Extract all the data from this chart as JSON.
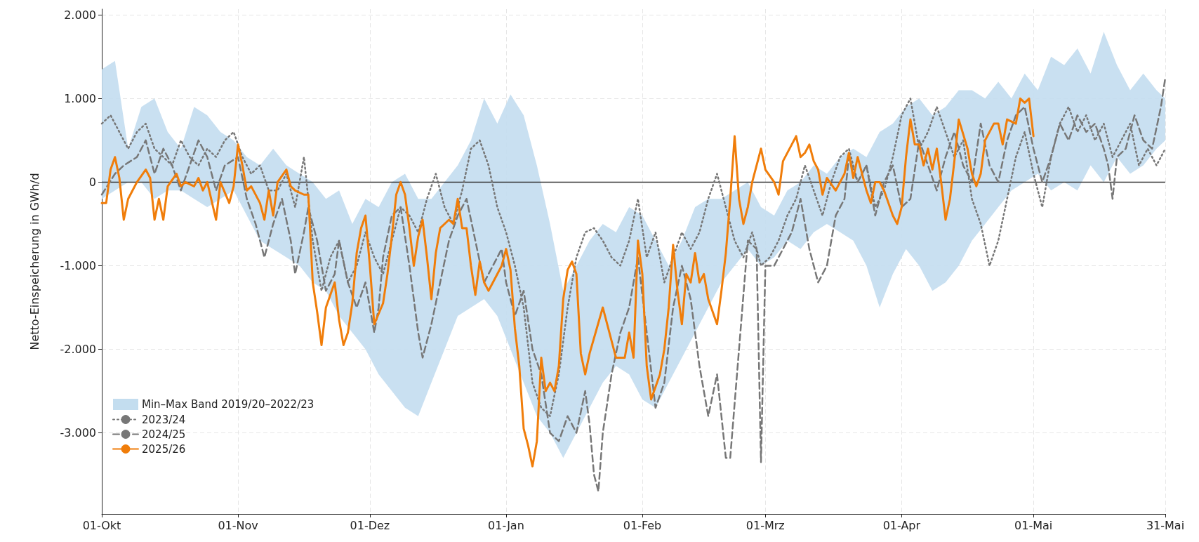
{
  "chart_data": {
    "type": "line",
    "ylabel": "Netto-Einspeicherung in GWh/d",
    "xlim": [
      "2025-10-01",
      "2026-05-31"
    ],
    "xticks": [
      {
        "value": "2025-10-01",
        "label": "01-Okt"
      },
      {
        "value": "2025-11-01",
        "label": "01-Nov"
      },
      {
        "value": "2025-12-01",
        "label": "01-Dez"
      },
      {
        "value": "2026-01-01",
        "label": "01-Jan"
      },
      {
        "value": "2026-02-01",
        "label": "01-Feb"
      },
      {
        "value": "2026-03-01",
        "label": "01-Mrz"
      },
      {
        "value": "2026-04-01",
        "label": "01-Apr"
      },
      {
        "value": "2026-05-01",
        "label": "01-Mai"
      },
      {
        "value": "2026-05-31",
        "label": "31-Mai"
      }
    ],
    "ylim": [
      -3970,
      2070
    ],
    "yticks": [
      {
        "value": -3000,
        "label": "-3.000"
      },
      {
        "value": -2000,
        "label": "-2.000"
      },
      {
        "value": -1000,
        "label": "-1.000"
      },
      {
        "value": 0,
        "label": "0"
      },
      {
        "value": 1000,
        "label": "1.000"
      },
      {
        "value": 2000,
        "label": "2.000"
      }
    ],
    "grid": true,
    "legend": "bottom left",
    "marker": "none",
    "ref_lines": [
      {
        "axis": "y",
        "value": 0,
        "color": "#333333"
      }
    ],
    "series": [
      {
        "name": "Min–Max Band 2019/20–2022/23",
        "type": "area",
        "color": "#c3ddef",
        "x": [
          "2025-10-01",
          "2025-10-04",
          "2025-10-07",
          "2025-10-10",
          "2025-10-13",
          "2025-10-16",
          "2025-10-19",
          "2025-10-22",
          "2025-10-25",
          "2025-10-28",
          "2025-10-31",
          "2025-11-03",
          "2025-11-06",
          "2025-11-09",
          "2025-11-12",
          "2025-11-15",
          "2025-11-18",
          "2025-11-21",
          "2025-11-24",
          "2025-11-27",
          "2025-11-30",
          "2025-12-03",
          "2025-12-06",
          "2025-12-09",
          "2025-12-12",
          "2025-12-15",
          "2025-12-18",
          "2025-12-21",
          "2025-12-24",
          "2025-12-27",
          "2025-12-30",
          "2026-01-02",
          "2026-01-05",
          "2026-01-08",
          "2026-01-11",
          "2026-01-14",
          "2026-01-17",
          "2026-01-20",
          "2026-01-23",
          "2026-01-26",
          "2026-01-29",
          "2026-02-01",
          "2026-02-04",
          "2026-02-07",
          "2026-02-10",
          "2026-02-13",
          "2026-02-16",
          "2026-02-19",
          "2026-02-22",
          "2026-02-25",
          "2026-02-28",
          "2026-03-03",
          "2026-03-06",
          "2026-03-09",
          "2026-03-12",
          "2026-03-15",
          "2026-03-18",
          "2026-03-21",
          "2026-03-24",
          "2026-03-27",
          "2026-03-30",
          "2026-04-02",
          "2026-04-05",
          "2026-04-08",
          "2026-04-11",
          "2026-04-14",
          "2026-04-17",
          "2026-04-20",
          "2026-04-23",
          "2026-04-26",
          "2026-04-29",
          "2026-05-02",
          "2026-05-05",
          "2026-05-08",
          "2026-05-11",
          "2026-05-14",
          "2026-05-17",
          "2026-05-20",
          "2026-05-23",
          "2026-05-26",
          "2026-05-29",
          "2026-05-31"
        ],
        "values": [
          null,
          null,
          null,
          null,
          null,
          null,
          null,
          null,
          null,
          null,
          null,
          null,
          null,
          null,
          null,
          null,
          null,
          null,
          null,
          null,
          null,
          null,
          null,
          null,
          null,
          null,
          null,
          null,
          null,
          null,
          null,
          null,
          null,
          null,
          null,
          null,
          null,
          null,
          null,
          null,
          null,
          null,
          null,
          null,
          null,
          null,
          null,
          null,
          null,
          null,
          null,
          null,
          null,
          null,
          null,
          null,
          null,
          null,
          null,
          null,
          null,
          null,
          null,
          null,
          null,
          null,
          null,
          null,
          null,
          null,
          null,
          null,
          null,
          null,
          null,
          null,
          null,
          null,
          null,
          null,
          null,
          null
        ],
        "lower": [
          -200,
          -100,
          0,
          0,
          -200,
          -100,
          -100,
          -200,
          -300,
          -200,
          -100,
          -400,
          -700,
          -800,
          -900,
          -1000,
          -1200,
          -1300,
          -1600,
          -1800,
          -2000,
          -2300,
          -2500,
          -2700,
          -2800,
          -2400,
          -2000,
          -1600,
          -1500,
          -1400,
          -1600,
          -2000,
          -2400,
          -2800,
          -3000,
          -3300,
          -3000,
          -2700,
          -2400,
          -2200,
          -2300,
          -2600,
          -2700,
          -2400,
          -2100,
          -1800,
          -1500,
          -1200,
          -1000,
          -800,
          -1000,
          -900,
          -700,
          -800,
          -600,
          -500,
          -600,
          -700,
          -1000,
          -1500,
          -1100,
          -800,
          -1000,
          -1300,
          -1200,
          -1000,
          -700,
          -500,
          -300,
          -100,
          0,
          100,
          -100,
          0,
          -100,
          200,
          0,
          300,
          100,
          200,
          400,
          500
        ],
        "upper": [
          1350,
          1450,
          400,
          900,
          1000,
          600,
          400,
          900,
          800,
          600,
          500,
          300,
          200,
          400,
          200,
          100,
          0,
          -200,
          -100,
          -500,
          -200,
          -300,
          0,
          100,
          -200,
          -200,
          0,
          200,
          500,
          1000,
          700,
          1050,
          800,
          200,
          -500,
          -1300,
          -1000,
          -700,
          -500,
          -600,
          -300,
          -400,
          -700,
          -1000,
          -700,
          -300,
          -200,
          -200,
          -100,
          0,
          -300,
          -400,
          -100,
          0,
          200,
          100,
          300,
          400,
          300,
          600,
          700,
          900,
          1000,
          800,
          900,
          1100,
          1100,
          1000,
          1200,
          1000,
          1300,
          1100,
          1500,
          1400,
          1600,
          1300,
          1800,
          1400,
          1100,
          1300,
          1100,
          1000
        ]
      },
      {
        "name": "2023/24",
        "line_style": "dotted",
        "color": "#777777",
        "x": [
          "2025-10-01",
          "2025-10-03",
          "2025-10-05",
          "2025-10-07",
          "2025-10-09",
          "2025-10-11",
          "2025-10-13",
          "2025-10-15",
          "2025-10-17",
          "2025-10-19",
          "2025-10-21",
          "2025-10-23",
          "2025-10-25",
          "2025-10-27",
          "2025-10-29",
          "2025-10-31",
          "2025-11-02",
          "2025-11-04",
          "2025-11-06",
          "2025-11-08",
          "2025-11-10",
          "2025-11-12",
          "2025-11-14",
          "2025-11-16",
          "2025-11-18",
          "2025-11-20",
          "2025-11-22",
          "2025-11-24",
          "2025-11-26",
          "2025-11-28",
          "2025-11-30",
          "2025-12-02",
          "2025-12-04",
          "2025-12-06",
          "2025-12-08",
          "2025-12-10",
          "2025-12-12",
          "2025-12-14",
          "2025-12-16",
          "2025-12-18",
          "2025-12-20",
          "2025-12-22",
          "2025-12-24",
          "2025-12-26",
          "2025-12-28",
          "2025-12-30",
          "2026-01-01",
          "2026-01-03",
          "2026-01-05",
          "2026-01-07",
          "2026-01-09",
          "2026-01-11",
          "2026-01-13",
          "2026-01-15",
          "2026-01-17",
          "2026-01-19",
          "2026-01-21",
          "2026-01-23",
          "2026-01-25",
          "2026-01-27",
          "2026-01-29",
          "2026-01-31",
          "2026-02-02",
          "2026-02-04",
          "2026-02-06",
          "2026-02-08",
          "2026-02-10",
          "2026-02-12",
          "2026-02-14",
          "2026-02-16",
          "2026-02-18",
          "2026-02-20",
          "2026-02-22",
          "2026-02-24",
          "2026-02-26",
          "2026-02-28",
          "2026-03-02",
          "2026-03-04",
          "2026-03-06",
          "2026-03-08",
          "2026-03-10",
          "2026-03-12",
          "2026-03-14",
          "2026-03-16",
          "2026-03-18",
          "2026-03-20",
          "2026-03-22",
          "2026-03-24",
          "2026-03-26",
          "2026-03-28",
          "2026-03-30",
          "2026-04-01",
          "2026-04-03",
          "2026-04-05",
          "2026-04-07",
          "2026-04-09",
          "2026-04-11",
          "2026-04-13",
          "2026-04-15",
          "2026-04-17",
          "2026-04-19",
          "2026-04-21",
          "2026-04-23",
          "2026-04-25",
          "2026-04-27",
          "2026-04-29",
          "2026-05-01",
          "2026-05-03",
          "2026-05-05",
          "2026-05-07",
          "2026-05-09",
          "2026-05-11",
          "2026-05-13",
          "2026-05-15",
          "2026-05-17",
          "2026-05-19",
          "2026-05-21",
          "2026-05-23",
          "2026-05-25",
          "2026-05-27",
          "2026-05-29",
          "2026-05-31"
        ],
        "values": [
          700,
          800,
          600,
          400,
          600,
          700,
          400,
          300,
          200,
          500,
          300,
          200,
          400,
          300,
          500,
          600,
          300,
          100,
          200,
          -100,
          -100,
          100,
          -300,
          300,
          -700,
          -1300,
          -900,
          -700,
          -1200,
          -1000,
          -600,
          -900,
          -1100,
          -700,
          -300,
          -400,
          -600,
          -200,
          100,
          -300,
          -500,
          -100,
          400,
          500,
          200,
          -300,
          -600,
          -1000,
          -1500,
          -2400,
          -2700,
          -2800,
          -2300,
          -1500,
          -900,
          -600,
          -550,
          -700,
          -900,
          -1000,
          -700,
          -200,
          -900,
          -600,
          -1200,
          -900,
          -600,
          -800,
          -600,
          -200,
          100,
          -300,
          -700,
          -900,
          -600,
          -1000,
          -900,
          -700,
          -400,
          -200,
          200,
          -100,
          -400,
          0,
          300,
          400,
          0,
          200,
          -300,
          -100,
          300,
          800,
          1000,
          400,
          600,
          900,
          600,
          300,
          500,
          -200,
          -500,
          -1000,
          -700,
          -200,
          300,
          600,
          100,
          -300,
          300,
          700,
          900,
          600,
          800,
          500,
          700,
          300,
          500,
          700,
          200,
          400,
          200,
          400
        ]
      },
      {
        "name": "2024/25",
        "line_style": "dashed",
        "color": "#777777",
        "x": [
          "2025-10-01",
          "2025-10-04",
          "2025-10-06",
          "2025-10-09",
          "2025-10-11",
          "2025-10-13",
          "2025-10-15",
          "2025-10-17",
          "2025-10-19",
          "2025-10-21",
          "2025-10-23",
          "2025-10-25",
          "2025-10-27",
          "2025-10-29",
          "2025-11-01",
          "2025-11-03",
          "2025-11-05",
          "2025-11-07",
          "2025-11-09",
          "2025-11-11",
          "2025-11-13",
          "2025-11-14",
          "2025-11-16",
          "2025-11-17",
          "2025-11-19",
          "2025-11-21",
          "2025-11-23",
          "2025-11-24",
          "2025-11-26",
          "2025-11-28",
          "2025-11-30",
          "2025-12-02",
          "2025-12-03",
          "2025-12-04",
          "2025-12-06",
          "2025-12-08",
          "2025-12-10",
          "2025-12-12",
          "2025-12-13",
          "2025-12-15",
          "2025-12-17",
          "2025-12-19",
          "2025-12-21",
          "2025-12-23",
          "2025-12-25",
          "2025-12-27",
          "2025-12-29",
          "2025-12-31",
          "2026-01-01",
          "2026-01-03",
          "2026-01-05",
          "2026-01-07",
          "2026-01-09",
          "2026-01-11",
          "2026-01-13",
          "2026-01-15",
          "2026-01-17",
          "2026-01-19",
          "2026-01-20",
          "2026-01-21",
          "2026-01-22",
          "2026-01-23",
          "2026-01-25",
          "2026-01-27",
          "2026-01-29",
          "2026-01-30",
          "2026-01-31",
          "2026-02-02",
          "2026-02-04",
          "2026-02-06",
          "2026-02-08",
          "2026-02-10",
          "2026-02-12",
          "2026-02-14",
          "2026-02-16",
          "2026-02-18",
          "2026-02-20",
          "2026-02-21",
          "2026-02-23",
          "2026-02-25",
          "2026-02-27",
          "2026-02-28",
          "2026-03-01",
          "2026-03-03",
          "2026-03-05",
          "2026-03-07",
          "2026-03-09",
          "2026-03-11",
          "2026-03-13",
          "2026-03-15",
          "2026-03-17",
          "2026-03-19",
          "2026-03-20",
          "2026-03-22",
          "2026-03-24",
          "2026-03-26",
          "2026-03-28",
          "2026-03-30",
          "2026-04-01",
          "2026-04-03",
          "2026-04-05",
          "2026-04-07",
          "2026-04-09",
          "2026-04-11",
          "2026-04-13",
          "2026-04-15",
          "2026-04-17",
          "2026-04-19",
          "2026-04-21",
          "2026-04-23",
          "2026-04-25",
          "2026-04-27",
          "2026-04-29",
          "2026-05-01",
          "2026-05-03",
          "2026-05-05",
          "2026-05-07",
          "2026-05-09",
          "2026-05-11",
          "2026-05-13",
          "2026-05-15",
          "2026-05-17",
          "2026-05-18",
          "2026-05-19",
          "2026-05-20",
          "2026-05-22",
          "2026-05-24",
          "2026-05-26",
          "2026-05-28",
          "2026-05-30",
          "2026-05-31"
        ],
        "values": [
          -150,
          100,
          200,
          300,
          500,
          100,
          400,
          200,
          -100,
          200,
          500,
          300,
          -100,
          200,
          300,
          -200,
          -500,
          -900,
          -500,
          -200,
          -700,
          -1100,
          -600,
          -300,
          -700,
          -1300,
          -1100,
          -700,
          -1200,
          -1500,
          -1200,
          -1800,
          -1500,
          -900,
          -400,
          -300,
          -1000,
          -1800,
          -2100,
          -1700,
          -1200,
          -700,
          -400,
          -200,
          -700,
          -1200,
          -1000,
          -800,
          -1200,
          -1600,
          -1300,
          -2000,
          -2300,
          -3000,
          -3100,
          -2800,
          -3000,
          -2500,
          -2900,
          -3500,
          -3700,
          -3000,
          -2300,
          -1800,
          -1500,
          -1200,
          -900,
          -1800,
          -2700,
          -2400,
          -1500,
          -1000,
          -1400,
          -2200,
          -2800,
          -2300,
          -3300,
          -3300,
          -2000,
          -700,
          -800,
          -3350,
          -1000,
          -1000,
          -800,
          -600,
          -200,
          -800,
          -1200,
          -1000,
          -400,
          -200,
          300,
          0,
          200,
          -400,
          0,
          200,
          -300,
          -200,
          500,
          200,
          -100,
          300,
          600,
          200,
          0,
          700,
          200,
          0,
          500,
          800,
          900,
          400,
          0,
          300,
          700,
          500,
          800,
          600,
          700,
          400,
          200,
          -200,
          300,
          400,
          800,
          500,
          400,
          900,
          1250
        ]
      },
      {
        "name": "2025/26",
        "line_style": "solid",
        "color": "#f07d0a",
        "x": [
          "2025-10-01",
          "2025-10-02",
          "2025-10-03",
          "2025-10-04",
          "2025-10-05",
          "2025-10-06",
          "2025-10-07",
          "2025-10-08",
          "2025-10-09",
          "2025-10-11",
          "2025-10-12",
          "2025-10-13",
          "2025-10-14",
          "2025-10-15",
          "2025-10-16",
          "2025-10-18",
          "2025-10-19",
          "2025-10-20",
          "2025-10-22",
          "2025-10-23",
          "2025-10-24",
          "2025-10-25",
          "2025-10-27",
          "2025-10-28",
          "2025-10-30",
          "2025-10-31",
          "2025-11-01",
          "2025-11-02",
          "2025-11-03",
          "2025-11-04",
          "2025-11-06",
          "2025-11-07",
          "2025-11-08",
          "2025-11-09",
          "2025-11-10",
          "2025-11-12",
          "2025-11-13",
          "2025-11-14",
          "2025-11-16",
          "2025-11-17",
          "2025-11-18",
          "2025-11-19",
          "2025-11-20",
          "2025-11-21",
          "2025-11-23",
          "2025-11-24",
          "2025-11-25",
          "2025-11-26",
          "2025-11-27",
          "2025-11-28",
          "2025-11-29",
          "2025-11-30",
          "2025-12-01",
          "2025-12-02",
          "2025-12-04",
          "2025-12-05",
          "2025-12-06",
          "2025-12-07",
          "2025-12-08",
          "2025-12-09",
          "2025-12-10",
          "2025-12-11",
          "2025-12-12",
          "2025-12-13",
          "2025-12-14",
          "2025-12-15",
          "2025-12-16",
          "2025-12-17",
          "2025-12-19",
          "2025-12-20",
          "2025-12-21",
          "2025-12-22",
          "2025-12-23",
          "2025-12-24",
          "2025-12-25",
          "2025-12-26",
          "2025-12-27",
          "2025-12-28",
          "2025-12-29",
          "2025-12-31",
          "2026-01-01",
          "2026-01-02",
          "2026-01-03",
          "2026-01-04",
          "2026-01-05",
          "2026-01-06",
          "2026-01-07",
          "2026-01-08",
          "2026-01-09",
          "2026-01-10",
          "2026-01-11",
          "2026-01-12",
          "2026-01-13",
          "2026-01-14",
          "2026-01-15",
          "2026-01-16",
          "2026-01-17",
          "2026-01-18",
          "2026-01-19",
          "2026-01-20",
          "2026-01-23",
          "2026-01-26",
          "2026-01-28",
          "2026-01-29",
          "2026-01-30",
          "2026-01-31",
          "2026-02-01",
          "2026-02-02",
          "2026-02-03",
          "2026-02-05",
          "2026-02-06",
          "2026-02-07",
          "2026-02-08",
          "2026-02-09",
          "2026-02-10",
          "2026-02-11",
          "2026-02-12",
          "2026-02-13",
          "2026-02-14",
          "2026-02-15",
          "2026-02-16",
          "2026-02-18",
          "2026-02-19",
          "2026-02-20",
          "2026-02-21",
          "2026-02-22",
          "2026-02-23",
          "2026-02-24",
          "2026-02-25",
          "2026-02-26",
          "2026-02-28",
          "2026-03-01",
          "2026-03-03",
          "2026-03-04",
          "2026-03-05",
          "2026-03-07",
          "2026-03-08",
          "2026-03-09",
          "2026-03-10",
          "2026-03-11",
          "2026-03-12",
          "2026-03-13",
          "2026-03-14",
          "2026-03-15",
          "2026-03-17",
          "2026-03-18",
          "2026-03-19",
          "2026-03-20",
          "2026-03-21",
          "2026-03-22",
          "2026-03-24",
          "2026-03-25",
          "2026-03-26",
          "2026-03-27",
          "2026-03-28",
          "2026-03-30",
          "2026-03-31",
          "2026-04-01",
          "2026-04-02",
          "2026-04-03",
          "2026-04-04",
          "2026-04-05",
          "2026-04-06",
          "2026-04-07",
          "2026-04-08",
          "2026-04-09",
          "2026-04-10",
          "2026-04-11",
          "2026-04-12",
          "2026-04-13",
          "2026-04-14",
          "2026-04-16",
          "2026-04-17",
          "2026-04-18",
          "2026-04-19",
          "2026-04-20",
          "2026-04-22",
          "2026-04-23",
          "2026-04-24",
          "2026-04-25",
          "2026-04-27",
          "2026-04-28",
          "2026-04-29",
          "2026-04-30",
          "2026-05-01"
        ],
        "values": [
          -250,
          -250,
          150,
          300,
          50,
          -450,
          -200,
          -100,
          0,
          150,
          50,
          -450,
          -200,
          -450,
          -50,
          100,
          -50,
          0,
          -50,
          50,
          -100,
          0,
          -450,
          0,
          -250,
          -50,
          450,
          200,
          -100,
          -50,
          -250,
          -450,
          -100,
          -400,
          0,
          150,
          -50,
          -100,
          -150,
          -150,
          -1200,
          -1550,
          -1950,
          -1500,
          -1200,
          -1650,
          -1950,
          -1800,
          -1450,
          -850,
          -550,
          -400,
          -1000,
          -1700,
          -1450,
          -1100,
          -650,
          -150,
          0,
          -150,
          -550,
          -1000,
          -650,
          -450,
          -900,
          -1400,
          -850,
          -550,
          -450,
          -500,
          -200,
          -550,
          -550,
          -1000,
          -1350,
          -950,
          -1200,
          -1300,
          -1200,
          -1000,
          -800,
          -1050,
          -1750,
          -2200,
          -2950,
          -3150,
          -3400,
          -3100,
          -2100,
          -2500,
          -2400,
          -2500,
          -2200,
          -1400,
          -1050,
          -950,
          -1100,
          -2050,
          -2300,
          -2050,
          -1500,
          -2100,
          -2100,
          -1800,
          -2100,
          -700,
          -1100,
          -2200,
          -2600,
          -2300,
          -2000,
          -1500,
          -750,
          -1300,
          -1700,
          -1100,
          -1200,
          -850,
          -1200,
          -1100,
          -1400,
          -1700,
          -1300,
          -850,
          -200,
          550,
          -200,
          -500,
          -300,
          0,
          400,
          150,
          0,
          -150,
          250,
          450,
          550,
          300,
          350,
          450,
          250,
          150,
          -150,
          50,
          -100,
          0,
          100,
          350,
          50,
          300,
          -100,
          -250,
          0,
          0,
          -100,
          -400,
          -500,
          -300,
          300,
          750,
          450,
          450,
          200,
          400,
          150,
          400,
          0,
          -450,
          -200,
          250,
          750,
          400,
          100,
          -50,
          100,
          500,
          700,
          700,
          450,
          750,
          700,
          1000,
          950,
          1000,
          550
        ]
      }
    ]
  }
}
